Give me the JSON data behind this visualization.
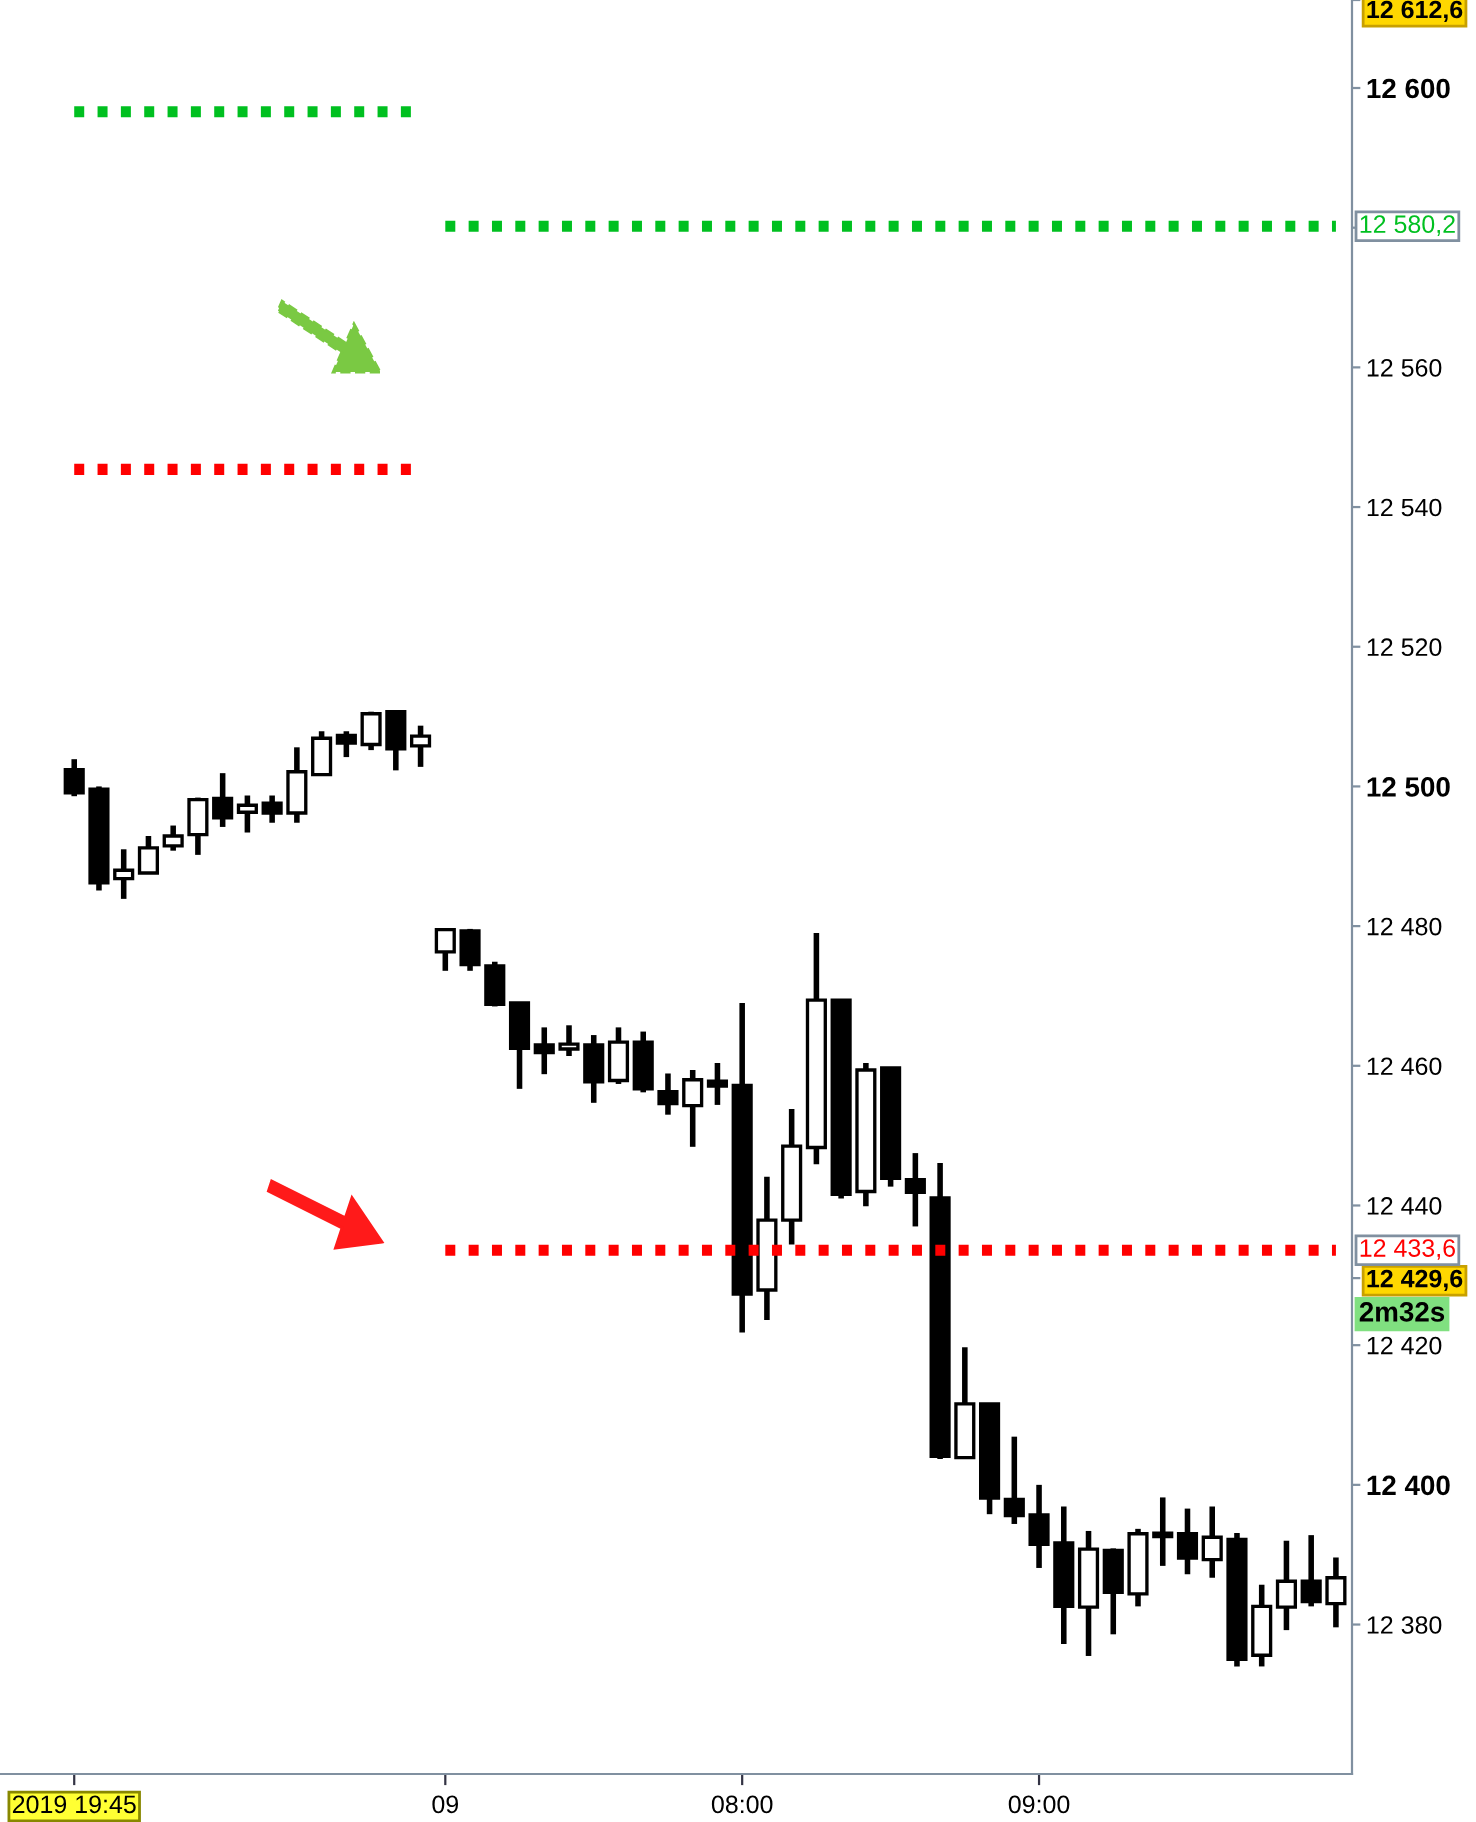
{
  "chart_data": {
    "type": "candlestick",
    "categories": [
      "2019 19:45",
      null,
      null,
      null,
      null,
      null,
      null,
      null,
      null,
      null,
      null,
      null,
      null,
      null,
      null,
      "09",
      null,
      null,
      null,
      null,
      null,
      null,
      null,
      null,
      null,
      null,
      null,
      "08:00",
      null,
      null,
      null,
      null,
      null,
      null,
      null,
      null,
      null,
      null,
      null,
      "09:00",
      null,
      null,
      null,
      null,
      null,
      null,
      null,
      null,
      null,
      null,
      null,
      null
    ],
    "ohlc": [
      [
        12502.4,
        12503.9,
        12498.6,
        12499.1
      ],
      [
        12499.6,
        12500.0,
        12485.1,
        12486.2
      ],
      [
        12486.8,
        12491.0,
        12483.9,
        12488.0
      ],
      [
        12487.6,
        12492.9,
        12487.6,
        12491.2
      ],
      [
        12491.5,
        12494.4,
        12490.8,
        12492.9
      ],
      [
        12493.1,
        12498.4,
        12490.2,
        12498.1
      ],
      [
        12498.3,
        12501.9,
        12494.2,
        12495.5
      ],
      [
        12496.3,
        12498.7,
        12493.4,
        12497.3
      ],
      [
        12497.6,
        12498.7,
        12494.8,
        12496.2
      ],
      [
        12496.2,
        12505.6,
        12494.8,
        12502.1
      ],
      [
        12501.7,
        12507.9,
        12501.7,
        12506.9
      ],
      [
        12507.3,
        12507.9,
        12504.2,
        12506.2
      ],
      [
        12506.0,
        12510.7,
        12505.2,
        12510.4
      ],
      [
        12510.7,
        12510.7,
        12502.3,
        12505.4
      ],
      [
        12505.8,
        12508.7,
        12502.8,
        12507.2
      ],
      [
        12476.3,
        12479.5,
        12473.6,
        12479.5
      ],
      [
        12479.3,
        12479.6,
        12473.6,
        12474.5
      ],
      [
        12474.3,
        12474.9,
        12468.5,
        12468.8
      ],
      [
        12469.0,
        12469.0,
        12456.7,
        12462.5
      ],
      [
        12463.0,
        12465.5,
        12458.8,
        12461.9
      ],
      [
        12462.4,
        12465.8,
        12461.4,
        12463.1
      ],
      [
        12463.0,
        12464.4,
        12454.7,
        12457.7
      ],
      [
        12457.9,
        12465.5,
        12457.4,
        12463.4
      ],
      [
        12463.4,
        12464.9,
        12456.2,
        12456.7
      ],
      [
        12456.3,
        12458.9,
        12453.0,
        12454.6
      ],
      [
        12454.3,
        12459.4,
        12448.4,
        12458.0
      ],
      [
        12457.8,
        12460.4,
        12454.4,
        12457.1
      ],
      [
        12457.2,
        12469.0,
        12421.8,
        12427.3
      ],
      [
        12427.9,
        12444.1,
        12423.6,
        12437.9
      ],
      [
        12437.9,
        12453.8,
        12434.4,
        12448.5
      ],
      [
        12448.3,
        12479.0,
        12445.9,
        12469.4
      ],
      [
        12469.4,
        12469.4,
        12441.0,
        12441.6
      ],
      [
        12442.0,
        12460.4,
        12439.9,
        12459.4
      ],
      [
        12459.7,
        12459.7,
        12442.7,
        12443.9
      ],
      [
        12443.7,
        12447.5,
        12437.0,
        12441.9
      ],
      [
        12441.1,
        12446.1,
        12403.7,
        12404.1
      ],
      [
        12403.9,
        12419.7,
        12403.9,
        12411.6
      ],
      [
        12411.6,
        12411.6,
        12395.8,
        12398.1
      ],
      [
        12397.9,
        12406.9,
        12394.4,
        12395.6
      ],
      [
        12395.7,
        12400.0,
        12388.1,
        12391.5
      ],
      [
        12391.7,
        12396.9,
        12377.2,
        12382.6
      ],
      [
        12382.5,
        12393.4,
        12375.5,
        12390.8
      ],
      [
        12390.6,
        12390.9,
        12378.6,
        12384.6
      ],
      [
        12384.4,
        12393.7,
        12382.6,
        12393.0
      ],
      [
        12393.1,
        12398.2,
        12388.4,
        12392.6
      ],
      [
        12393.0,
        12396.6,
        12387.2,
        12389.5
      ],
      [
        12389.3,
        12396.9,
        12386.7,
        12392.5
      ],
      [
        12392.2,
        12393.1,
        12374.0,
        12375.0
      ],
      [
        12375.6,
        12385.7,
        12374.0,
        12382.6
      ],
      [
        12382.5,
        12392.0,
        12379.2,
        12386.2
      ],
      [
        12386.2,
        12392.8,
        12382.6,
        12383.3
      ],
      [
        12383.0,
        12389.6,
        12379.6,
        12386.7
      ]
    ],
    "series": [
      {
        "type": "line",
        "color": "#00c020",
        "line_style": "dotted",
        "values": [
          12596.6,
          12596.6,
          12596.6,
          12596.6,
          12596.6,
          12596.6,
          12596.6,
          12596.6,
          12596.6,
          12596.6,
          12596.6,
          12596.6,
          12596.6,
          12596.6,
          12596.6,
          null,
          null,
          null,
          null,
          null,
          null,
          null,
          null,
          null,
          null,
          null,
          null,
          null,
          null,
          null,
          null,
          null,
          null,
          null,
          null,
          null,
          null,
          null,
          null,
          null,
          null,
          null,
          null,
          null,
          null,
          null,
          null,
          null,
          null,
          null,
          null,
          null
        ]
      },
      {
        "type": "line",
        "color": "#00c020",
        "line_style": "dotted",
        "values": [
          null,
          null,
          null,
          null,
          null,
          null,
          null,
          null,
          null,
          null,
          null,
          null,
          null,
          null,
          null,
          12580.2,
          12580.2,
          12580.2,
          12580.2,
          12580.2,
          12580.2,
          12580.2,
          12580.2,
          12580.2,
          12580.2,
          12580.2,
          12580.2,
          12580.2,
          12580.2,
          12580.2,
          12580.2,
          12580.2,
          12580.2,
          12580.2,
          12580.2,
          12580.2,
          12580.2,
          12580.2,
          12580.2,
          12580.2,
          12580.2,
          12580.2,
          12580.2,
          12580.2,
          12580.2,
          12580.2,
          12580.2,
          12580.2,
          12580.2,
          12580.2,
          12580.2,
          12580.2
        ],
        "value_labels": [
          null,
          null,
          null,
          null,
          null,
          null,
          null,
          null,
          null,
          null,
          null,
          null,
          null,
          null,
          null,
          null,
          null,
          null,
          null,
          null,
          null,
          null,
          null,
          null,
          null,
          null,
          null,
          null,
          null,
          null,
          null,
          null,
          null,
          null,
          null,
          null,
          null,
          null,
          null,
          null,
          null,
          null,
          null,
          null,
          null,
          null,
          null,
          null,
          null,
          null,
          null,
          "12 580,2"
        ]
      },
      {
        "type": "line",
        "color": "#ff0000",
        "line_style": "dotted",
        "values": [
          12545.4,
          12545.4,
          12545.4,
          12545.4,
          12545.4,
          12545.4,
          12545.4,
          12545.4,
          12545.4,
          12545.4,
          12545.4,
          12545.4,
          12545.4,
          12545.4,
          12545.4,
          null,
          null,
          null,
          null,
          null,
          null,
          null,
          null,
          null,
          null,
          null,
          null,
          null,
          null,
          null,
          null,
          null,
          null,
          null,
          null,
          null,
          null,
          null,
          null,
          null,
          null,
          null,
          null,
          null,
          null,
          null,
          null,
          null,
          null,
          null,
          null,
          null
        ]
      },
      {
        "type": "line",
        "color": "#ff0000",
        "line_style": "dotted",
        "values": [
          null,
          null,
          null,
          null,
          null,
          null,
          null,
          null,
          null,
          null,
          null,
          null,
          null,
          null,
          null,
          12433.6,
          12433.6,
          12433.6,
          12433.6,
          12433.6,
          12433.6,
          12433.6,
          12433.6,
          12433.6,
          12433.6,
          12433.6,
          12433.6,
          12433.6,
          12433.6,
          12433.6,
          12433.6,
          12433.6,
          12433.6,
          12433.6,
          12433.6,
          12433.6,
          12433.6,
          12433.6,
          12433.6,
          12433.6,
          12433.6,
          12433.6,
          12433.6,
          12433.6,
          12433.6,
          12433.6,
          12433.6,
          12433.6,
          12433.6,
          12433.6,
          12433.6,
          12433.6
        ],
        "value_labels": [
          null,
          null,
          null,
          null,
          null,
          null,
          null,
          null,
          null,
          null,
          null,
          null,
          null,
          null,
          null,
          null,
          null,
          null,
          null,
          null,
          null,
          null,
          null,
          null,
          null,
          null,
          null,
          null,
          null,
          null,
          null,
          null,
          null,
          null,
          null,
          null,
          null,
          null,
          null,
          null,
          null,
          null,
          null,
          null,
          null,
          null,
          null,
          null,
          null,
          null,
          null,
          "12 433,6"
        ]
      }
    ],
    "ylim": [
      12358.6,
      12612.6
    ],
    "yticks": [
      {
        "value": 12380,
        "label": "12 380"
      },
      {
        "value": 12400,
        "label": "12 400"
      },
      {
        "value": 12420,
        "label": "12 420"
      },
      {
        "value": 12440,
        "label": "12 440"
      },
      {
        "value": 12460,
        "label": "12 460"
      },
      {
        "value": 12480,
        "label": "12 480"
      },
      {
        "value": 12500,
        "label": "12 500"
      },
      {
        "value": 12520,
        "label": "12 520"
      },
      {
        "value": 12540,
        "label": "12 540"
      },
      {
        "value": 12560,
        "label": "12 560"
      },
      {
        "value": 12580,
        "label": null
      },
      {
        "value": 12600,
        "label": "12 600"
      },
      {
        "value": 12612.6,
        "label": "12 612,6"
      },
      {
        "value": 12429.6,
        "label": "12 429,6"
      }
    ],
    "annotations": [
      "2m32s"
    ],
    "grid": false,
    "legend": false
  }
}
